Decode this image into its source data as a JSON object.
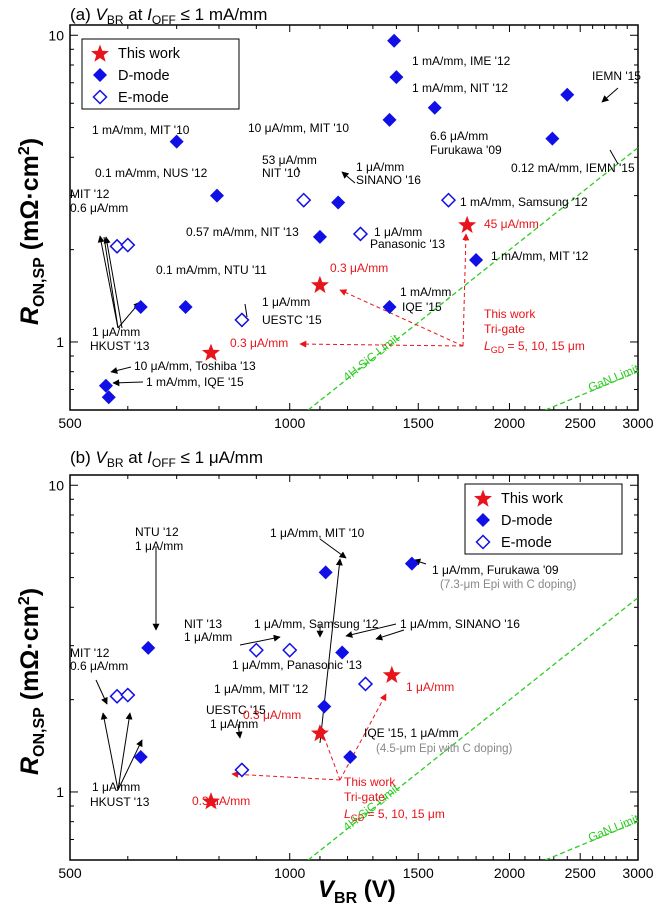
{
  "colors": {
    "d_mode": "#1010e6",
    "this_work": "#e8141b",
    "limit": "#2ecc22",
    "note_gray": "#888888"
  },
  "figure": {
    "ylabel": {
      "main": "R",
      "sub": "ON,SP",
      "unit": " (mΩ·cm",
      "sup": "2",
      "close": ")"
    },
    "xlabel": {
      "main": "V",
      "sub": "BR",
      "unit": " (V)"
    }
  },
  "legend_labels": [
    "This work",
    "D-mode",
    "E-mode"
  ],
  "chart_data": [
    {
      "type": "scatter",
      "title": {
        "prefix": "(a) ",
        "v": "V",
        "v_sub": "BR",
        "mid": " at ",
        "i": "I",
        "i_sub": "OFF",
        "suffix": " ≤ 1 mA/mm"
      },
      "xscale": "log",
      "yscale": "log",
      "xlim": [
        500,
        3000
      ],
      "ylim": [
        0.6,
        10.8
      ],
      "xticks": [
        "500",
        "1000",
        "1500",
        "2000",
        "2500",
        "3000"
      ],
      "xtick_values": [
        500,
        1000,
        1500,
        2000,
        2500,
        3000
      ],
      "yticks": [
        "1",
        "10"
      ],
      "ytick_values": [
        1,
        10
      ],
      "legend": "top-left",
      "series": [
        {
          "name": "This work",
          "kind": "star",
          "points": [
            {
              "x": 780,
              "y": 0.92
            },
            {
              "x": 1100,
              "y": 1.53
            },
            {
              "x": 1750,
              "y": 2.4
            }
          ]
        },
        {
          "name": "D-mode",
          "kind": "diamond-filled",
          "points": [
            {
              "x": 560,
              "y": 0.72
            },
            {
              "x": 565,
              "y": 0.66
            },
            {
              "x": 625,
              "y": 1.3
            },
            {
              "x": 720,
              "y": 1.3
            },
            {
              "x": 700,
              "y": 4.5
            },
            {
              "x": 795,
              "y": 3.0
            },
            {
              "x": 1100,
              "y": 2.2
            },
            {
              "x": 1165,
              "y": 2.85
            },
            {
              "x": 1390,
              "y": 9.6
            },
            {
              "x": 1400,
              "y": 7.3
            },
            {
              "x": 1370,
              "y": 5.3
            },
            {
              "x": 1580,
              "y": 5.8
            },
            {
              "x": 1370,
              "y": 1.3
            },
            {
              "x": 1800,
              "y": 1.85
            },
            {
              "x": 2290,
              "y": 4.6
            },
            {
              "x": 2400,
              "y": 6.4
            }
          ]
        },
        {
          "name": "E-mode",
          "kind": "diamond-open",
          "points": [
            {
              "x": 580,
              "y": 2.05
            },
            {
              "x": 600,
              "y": 2.07
            },
            {
              "x": 860,
              "y": 1.18
            },
            {
              "x": 1045,
              "y": 2.9
            },
            {
              "x": 1250,
              "y": 2.25
            },
            {
              "x": 1650,
              "y": 2.9
            }
          ]
        }
      ],
      "limits": [
        {
          "name": "4H-SiC Limit",
          "x0": 1060,
          "y0": 0.6,
          "x1": 3000,
          "y1": 4.3
        },
        {
          "name": "GaN Limit",
          "x0": 2240,
          "y0": 0.6,
          "x1": 3000,
          "y1": 0.8
        }
      ],
      "annotations": [
        {
          "text": "1 mA/mm, IME '12"
        },
        {
          "text": "1 mA/mm, NIT '12"
        },
        {
          "text": "IEMN '15"
        },
        {
          "text": "10 μA/mm, MIT '10"
        },
        {
          "text": "6.6 μA/mm"
        },
        {
          "text": "Furukawa '09"
        },
        {
          "text": "1 mA/mm, MIT '10"
        },
        {
          "text": "0.12 mA/mm, IEMN '15"
        },
        {
          "text": "0.1 mA/mm, NUS '12"
        },
        {
          "text": "53 μA/mm"
        },
        {
          "text": "NIT '10"
        },
        {
          "text": "1 μA/mm"
        },
        {
          "text": "SINANO '16"
        },
        {
          "text": "MIT '12"
        },
        {
          "text": "0.6 μA/mm"
        },
        {
          "text": "1 mA/mm, Samsung '12"
        },
        {
          "text": "0.57 mA/mm, NIT '13"
        },
        {
          "text": "1 μA/mm"
        },
        {
          "text": "Panasonic '13"
        },
        {
          "text": "1 mA/mm, MIT '12"
        },
        {
          "text": "0.1 mA/mm, NTU '11"
        },
        {
          "text": "1 μA/mm"
        },
        {
          "text": "UESTC '15"
        },
        {
          "text": "1 mA/mm"
        },
        {
          "text": "IQE '15"
        },
        {
          "text": "1 μA/mm"
        },
        {
          "text": "HKUST '13"
        },
        {
          "text": "10 μA/mm, Toshiba '13"
        },
        {
          "text": "1 mA/mm, IQE '15"
        }
      ],
      "red_annotations": [
        {
          "text": "45 μA/mm"
        },
        {
          "text": "0.3 μA/mm"
        },
        {
          "text": "0.3 μA/mm"
        },
        {
          "text": "This work"
        },
        {
          "text": "Tri-gate"
        }
      ],
      "lgd_note": {
        "L": "L",
        "sub": "GD",
        "rest": " = 5, 10, 15 μm"
      }
    },
    {
      "type": "scatter",
      "title": {
        "prefix": "(b) ",
        "v": "V",
        "v_sub": "BR",
        "mid": " at ",
        "i": "I",
        "i_sub": "OFF",
        "suffix": " ≤ 1 μA/mm"
      },
      "xscale": "log",
      "yscale": "log",
      "xlim": [
        500,
        3000
      ],
      "ylim": [
        0.6,
        10.8
      ],
      "xticks": [
        "500",
        "1000",
        "1500",
        "2000",
        "2500",
        "3000"
      ],
      "xtick_values": [
        500,
        1000,
        1500,
        2000,
        2500,
        3000
      ],
      "yticks": [
        "1",
        "10"
      ],
      "ytick_values": [
        1,
        10
      ],
      "legend": "top-right",
      "series": [
        {
          "name": "This work",
          "kind": "star",
          "points": [
            {
              "x": 780,
              "y": 0.93
            },
            {
              "x": 1100,
              "y": 1.55
            },
            {
              "x": 1380,
              "y": 2.4
            }
          ]
        },
        {
          "name": "D-mode",
          "kind": "diamond-filled",
          "points": [
            {
              "x": 625,
              "y": 1.3
            },
            {
              "x": 640,
              "y": 2.95
            },
            {
              "x": 1120,
              "y": 5.2
            },
            {
              "x": 1470,
              "y": 5.55
            },
            {
              "x": 1180,
              "y": 2.85
            },
            {
              "x": 1115,
              "y": 1.9
            },
            {
              "x": 1210,
              "y": 1.3
            }
          ]
        },
        {
          "name": "E-mode",
          "kind": "diamond-open",
          "points": [
            {
              "x": 580,
              "y": 2.05
            },
            {
              "x": 600,
              "y": 2.07
            },
            {
              "x": 860,
              "y": 1.18
            },
            {
              "x": 900,
              "y": 2.9
            },
            {
              "x": 1000,
              "y": 2.9
            },
            {
              "x": 1270,
              "y": 2.25
            }
          ]
        }
      ],
      "limits": [
        {
          "name": "4H-SiC Limit",
          "x0": 1060,
          "y0": 0.6,
          "x1": 3000,
          "y1": 4.3
        },
        {
          "name": "GaN Limit",
          "x0": 2240,
          "y0": 0.6,
          "x1": 3000,
          "y1": 0.8
        }
      ],
      "annotations": [
        {
          "text": "NTU '12"
        },
        {
          "text": "1 μA/mm"
        },
        {
          "text": "1 μA/mm, MIT '10"
        },
        {
          "text": "1 μA/mm, Furukawa '09"
        },
        {
          "text": "MIT '12"
        },
        {
          "text": "0.6 μA/mm"
        },
        {
          "text": "NIT '13"
        },
        {
          "text": "1 μA/mm"
        },
        {
          "text": "1 μA/mm, Samsung '12"
        },
        {
          "text": "1 μA/mm, SINANO '16"
        },
        {
          "text": "1 μA/mm, Panasonic '13"
        },
        {
          "text": "1 μA/mm, MIT '12"
        },
        {
          "text": "UESTC '15"
        },
        {
          "text": "1 μA/mm"
        },
        {
          "text": "IQE '15, 1 μA/mm"
        },
        {
          "text": "1 μA/mm"
        },
        {
          "text": "HKUST '13"
        }
      ],
      "gray_annotations": [
        {
          "text": "(7.3-μm Epi with C doping)"
        },
        {
          "text": "(4.5-μm Epi with C doping)"
        }
      ],
      "red_annotations": [
        {
          "text": "1 μA/mm"
        },
        {
          "text": "0.3 μA/mm"
        },
        {
          "text": "0.3 μA/mm"
        },
        {
          "text": "This work"
        },
        {
          "text": "Tri-gate"
        }
      ],
      "lgd_note": {
        "L": "L",
        "sub": "GD",
        "rest": " = 5, 10, 15 μm"
      }
    }
  ]
}
